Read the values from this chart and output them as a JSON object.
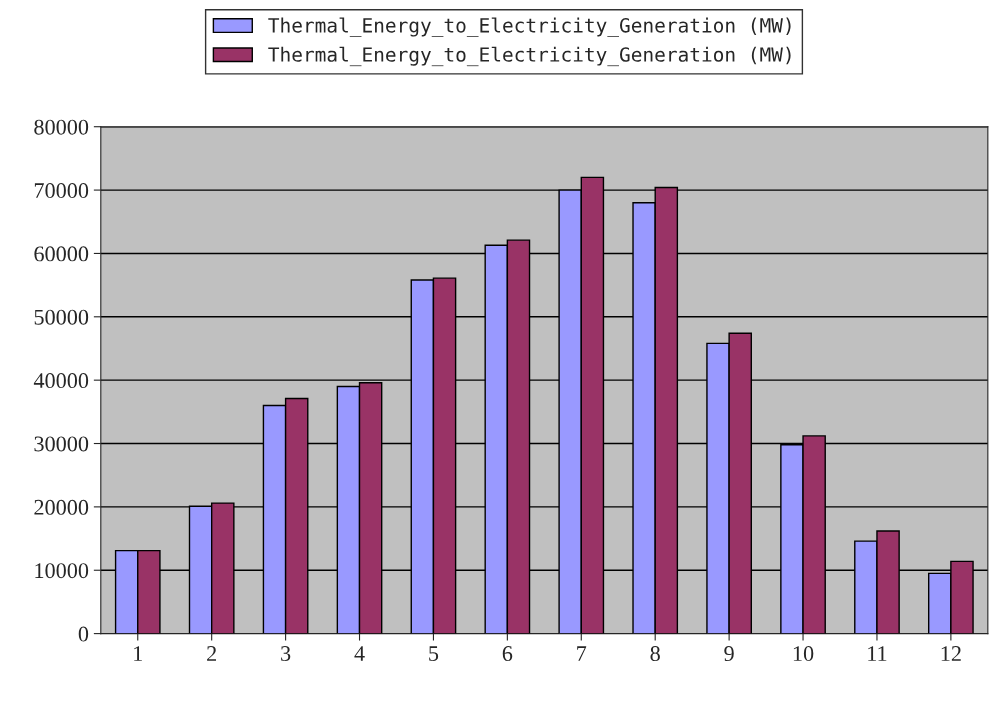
{
  "chart_data": {
    "type": "bar",
    "categories": [
      "1",
      "2",
      "3",
      "4",
      "5",
      "6",
      "7",
      "8",
      "9",
      "10",
      "11",
      "12"
    ],
    "series": [
      {
        "name": "Thermal_Energy_to_Electricity_Generation (MW)",
        "color": "#9999ff",
        "values": [
          13100,
          20100,
          36000,
          39000,
          55800,
          61300,
          70000,
          68000,
          45800,
          29800,
          14600,
          9500
        ]
      },
      {
        "name": "Thermal_Energy_to_Electricity_Generation (MW)",
        "color": "#993366",
        "values": [
          13100,
          20600,
          37100,
          39600,
          56100,
          62100,
          72000,
          70400,
          47400,
          31200,
          16200,
          11400
        ]
      }
    ],
    "ylim": [
      0,
      80000
    ],
    "yticks": [
      0,
      10000,
      20000,
      30000,
      40000,
      50000,
      60000,
      70000,
      80000
    ],
    "grid": "y",
    "legend": "top"
  }
}
